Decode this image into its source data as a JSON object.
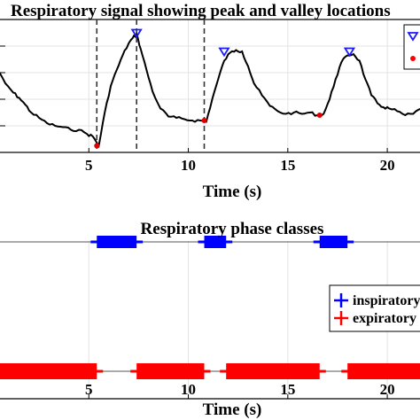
{
  "chart_data": [
    {
      "type": "line",
      "title": "Respiratory signal showing peak and valley locations",
      "xlabel": "Time (s)",
      "ylabel": "",
      "xlim": [
        0,
        22
      ],
      "ylim": [
        0,
        1
      ],
      "xticks": [
        5,
        10,
        15,
        20
      ],
      "grid": true,
      "x": [
        0,
        0.4,
        0.8,
        1.2,
        1.5,
        1.8,
        2.1,
        2.5,
        2.9,
        3.3,
        3.7,
        4.1,
        4.5,
        4.9,
        5.2,
        5.5,
        5.8,
        6.1,
        6.4,
        6.7,
        7.0,
        7.2,
        7.4,
        7.6,
        7.9,
        8.2,
        8.6,
        9.0,
        9.4,
        9.8,
        10.2,
        10.6,
        10.9,
        11.2,
        11.5,
        11.8,
        12.1,
        12.4,
        12.7,
        13.0,
        13.3,
        13.7,
        14.1,
        14.5,
        14.9,
        15.3,
        15.7,
        16.1,
        16.5,
        16.8,
        17.1,
        17.4,
        17.7,
        18.0,
        18.3,
        18.6,
        18.9,
        19.2,
        19.5,
        19.8,
        20.1,
        20.5,
        20.9,
        21.3,
        21.7,
        22.0
      ],
      "series": [
        {
          "values": [
            0.68,
            0.62,
            0.52,
            0.45,
            0.41,
            0.36,
            0.3,
            0.26,
            0.22,
            0.2,
            0.19,
            0.17,
            0.17,
            0.14,
            0.12,
            0.05,
            0.3,
            0.5,
            0.62,
            0.73,
            0.82,
            0.86,
            0.89,
            0.78,
            0.62,
            0.46,
            0.33,
            0.27,
            0.26,
            0.25,
            0.24,
            0.24,
            0.23,
            0.4,
            0.55,
            0.69,
            0.75,
            0.77,
            0.76,
            0.65,
            0.52,
            0.43,
            0.35,
            0.31,
            0.29,
            0.3,
            0.29,
            0.3,
            0.28,
            0.29,
            0.4,
            0.55,
            0.68,
            0.73,
            0.74,
            0.69,
            0.55,
            0.43,
            0.37,
            0.34,
            0.33,
            0.31,
            0.28,
            0.29,
            0.33,
            0.36
          ]
        }
      ],
      "peaks": {
        "x": [
          7.4,
          11.8,
          18.1
        ],
        "y": [
          0.89,
          0.75,
          0.75
        ]
      },
      "valleys": {
        "x": [
          5.4,
          10.8,
          16.6
        ],
        "y": [
          0.05,
          0.24,
          0.28
        ]
      },
      "vlines_x": [
        5.4,
        7.4,
        10.8
      ],
      "legend_placement": "top-right"
    },
    {
      "type": "bar",
      "title": "Respiratory phase classes",
      "xlabel": "Time (s)",
      "xlim": [
        0,
        22
      ],
      "xticks": [
        5,
        10,
        15,
        20
      ],
      "grid": true,
      "legend_placement": "right",
      "series": [
        {
          "name": "inspiratory",
          "color": "#0000ff",
          "intervals": [
            [
              5.4,
              7.4
            ],
            [
              10.8,
              11.9
            ],
            [
              16.6,
              18.0
            ]
          ]
        },
        {
          "name": "expiratory",
          "color": "#ff0000",
          "intervals": [
            [
              0,
              5.4
            ],
            [
              7.4,
              10.8
            ],
            [
              11.9,
              16.6
            ],
            [
              18.0,
              22.0
            ]
          ]
        }
      ]
    }
  ],
  "legend": {
    "top": [
      {
        "color": "#1a1aff",
        "marker": "triangle-down"
      },
      {
        "color": "#ff0000",
        "marker": "dot"
      }
    ],
    "bottom": [
      {
        "label": "inspiratory",
        "color": "#0000ff"
      },
      {
        "label": "expiratory",
        "color": "#ff0000"
      }
    ]
  }
}
